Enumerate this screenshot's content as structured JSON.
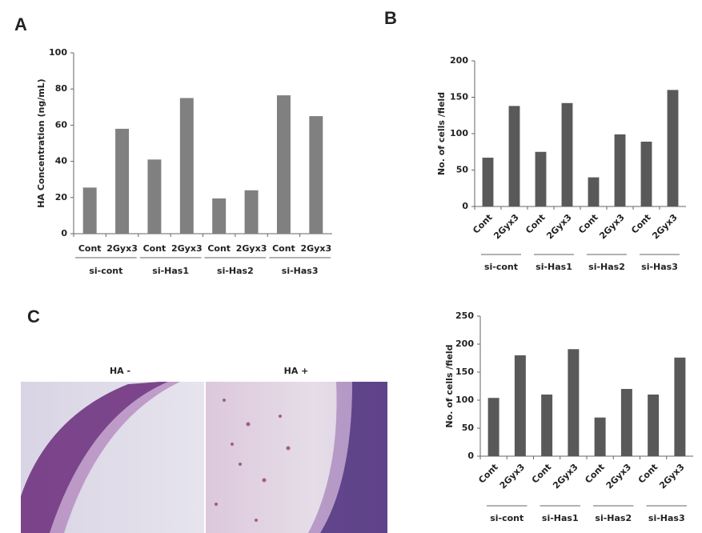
{
  "panels": [
    "A",
    "B",
    "C"
  ],
  "image_labels": [
    "HA -",
    "HA +"
  ],
  "chart_data": [
    {
      "type": "bar",
      "ylabel": "HA Concentration  (ng/mL)",
      "categories": [
        "Cont",
        "2Gyx3",
        "Cont",
        "2Gyx3",
        "Cont",
        "2Gyx3",
        "Cont",
        "2Gyx3"
      ],
      "groups": [
        "si-cont",
        "si-Has1",
        "si-Has2",
        "si-Has3"
      ],
      "values": [
        25.5,
        58,
        41,
        75,
        19.5,
        24,
        76.5,
        65
      ],
      "color": "#808080",
      "ylim": [
        0,
        100
      ],
      "yticks": [
        0,
        20,
        40,
        60,
        80,
        100
      ]
    },
    {
      "type": "bar",
      "ylabel": "No. of cells /field",
      "categories": [
        "Cont",
        "2Gyx3",
        "Cont",
        "2Gyx3",
        "Cont",
        "2Gyx3",
        "Cont",
        "2Gyx3"
      ],
      "groups": [
        "si-cont",
        "si-Has1",
        "si-Has2",
        "si-Has3"
      ],
      "values": [
        67,
        138,
        75,
        142,
        40,
        99,
        89,
        160
      ],
      "color": "#595959",
      "ylim": [
        0,
        200
      ],
      "yticks": [
        0,
        50,
        100,
        150,
        200
      ]
    },
    {
      "type": "bar",
      "ylabel": "No. of cells /field",
      "categories": [
        "Cont",
        "2Gyx3",
        "Cont",
        "2Gyx3",
        "Cont",
        "2Gyx3",
        "Cont",
        "2Gyx3"
      ],
      "groups": [
        "si-cont",
        "si-Has1",
        "si-Has2",
        "si-Has3"
      ],
      "values": [
        104,
        180,
        110,
        191,
        69,
        120,
        110,
        176
      ],
      "color": "#595959",
      "ylim": [
        0,
        250
      ],
      "yticks": [
        0,
        50,
        100,
        150,
        200,
        250
      ]
    }
  ]
}
